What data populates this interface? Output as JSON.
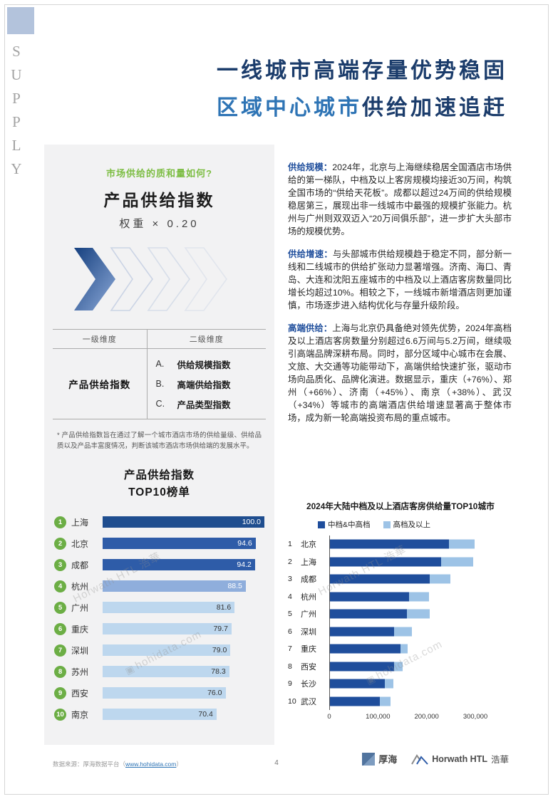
{
  "page": {
    "side_label": "SUPPLY",
    "page_number": "4"
  },
  "header": {
    "title_line1": "一线城市高端存量优势稳固",
    "title_line2_highlight": "区域中心城市",
    "title_line2_rest": "供给加速追赶"
  },
  "left_panel": {
    "question": "市场供给的质和量如何?",
    "index_name": "产品供给指数",
    "weight": "权重 × 0.20",
    "dimension_table": {
      "col1_header": "一级维度",
      "col2_header": "二级维度",
      "primary_dimension": "产品供给指数",
      "secondary_dimensions": [
        {
          "key": "A.",
          "label": "供给规模指数"
        },
        {
          "key": "B.",
          "label": "高端供给指数"
        },
        {
          "key": "C.",
          "label": "产品类型指数"
        }
      ]
    },
    "footnote": "* 产品供给指数旨在通过了解一个城市酒店市场的供给量级、供给品质以及产品丰富度情况，判断该城市酒店市场供给端的发展水平。",
    "ranking_title_line1": "产品供给指数",
    "ranking_title_line2": "TOP10榜单"
  },
  "article": {
    "paragraphs": [
      {
        "label": "供给规模：",
        "text": "2024年，北京与上海继续稳居全国酒店市场供给的第一梯队，中档及以上客房规模均接近30万间，构筑全国市场的“供给天花板”。成都以超过24万间的供给规模稳居第三，展现出非一线城市中最强的规模扩张能力。杭州与广州则双双迈入“20万间俱乐部”，进一步扩大头部市场的规模优势。"
      },
      {
        "label": "供给增速：",
        "text": "与头部城市供给规模趋于稳定不同，部分新一线和二线城市的供给扩张动力显著增强。济南、海口、青岛、大连和沈阳五座城市的中档及以上酒店客房数量同比增长均超过10%。相较之下，一线城市新增酒店则更加谨慎，市场逐步进入结构优化与存量升级阶段。"
      },
      {
        "label": "高端供给：",
        "text": "上海与北京仍具备绝对领先优势，2024年高档及以上酒店客房数量分别超过6.6万间与5.2万间，继续吸引高端品牌深耕布局。同时，部分区域中心城市在会展、文旅、大交通等功能带动下，高端供给快速扩张，驱动市场向品质化、品牌化演进。数据显示，重庆（+76%）、郑州（+66%）、济南（+45%）、南京（+38%）、武汉（+34%）等城市的高端酒店供给增速显著高于整体市场，成为新一轮高端投资布局的重点城市。"
      }
    ]
  },
  "watermarks": {
    "brand": "Horwath HTL 浩華",
    "site": "hohidata.com"
  },
  "footer": {
    "source_prefix": "数据来源：厚海数据平台（",
    "source_link": "www.hohidata.com",
    "source_suffix": "）",
    "houhai_logo_text": "厚海",
    "horwath_logo_text": "Horwath HTL",
    "horwath_logo_cn": "浩華"
  },
  "colors": {
    "accent_navy": "#1F4E9C",
    "accent_blue": "#2E74B5",
    "accent_green": "#6CAE45",
    "bar_light": "#BDD7EE"
  },
  "chart_data": [
    {
      "type": "bar",
      "orientation": "horizontal",
      "title": "产品供给指数 TOP10榜单",
      "categories": [
        "上海",
        "北京",
        "成都",
        "杭州",
        "广州",
        "重庆",
        "深圳",
        "苏州",
        "西安",
        "南京"
      ],
      "values": [
        100.0,
        94.6,
        94.2,
        88.5,
        81.6,
        79.7,
        79.0,
        78.3,
        76.0,
        70.4
      ],
      "value_labels": [
        "100.0",
        "94.6",
        "94.2",
        "88.5",
        "81.6",
        "79.7",
        "79.0",
        "78.3",
        "76.0",
        "70.4"
      ],
      "xlim": [
        0,
        100
      ],
      "grid": false,
      "legend": false,
      "rank_badge_color": "#6CAE45",
      "bar_colors": [
        "#1F4E8F",
        "#2E5CA8",
        "#2E5CA8",
        "#8FAEDC",
        "#BDD7EE",
        "#BDD7EE",
        "#BDD7EE",
        "#BDD7EE",
        "#BDD7EE",
        "#BDD7EE"
      ],
      "value_text_colors": [
        "#FFFFFF",
        "#FFFFFF",
        "#FFFFFF",
        "#FFFFFF",
        "#333333",
        "#333333",
        "#333333",
        "#333333",
        "#333333",
        "#333333"
      ]
    },
    {
      "type": "bar",
      "orientation": "horizontal",
      "stacked": true,
      "title": "2024年大陆中档及以上酒店客房供给量TOP10城市",
      "categories": [
        "北京",
        "上海",
        "成都",
        "杭州",
        "广州",
        "深圳",
        "重庆",
        "西安",
        "长沙",
        "武汉"
      ],
      "series": [
        {
          "name": "中档&中高档",
          "color": "#1F4E9C",
          "values": [
            245000,
            228000,
            205000,
            162000,
            158000,
            132000,
            145000,
            132000,
            113000,
            102000
          ]
        },
        {
          "name": "高档及以上",
          "color": "#9DC3E6",
          "values": [
            52000,
            66000,
            42000,
            42000,
            47000,
            36000,
            15000,
            18000,
            17000,
            22000
          ]
        }
      ],
      "xlim": [
        0,
        300000
      ],
      "x_ticks": [
        0,
        100000,
        200000,
        300000
      ],
      "x_tick_labels": [
        "0",
        "100,000",
        "200,000",
        "300,000"
      ],
      "legend_position": "top",
      "grid": false
    }
  ]
}
